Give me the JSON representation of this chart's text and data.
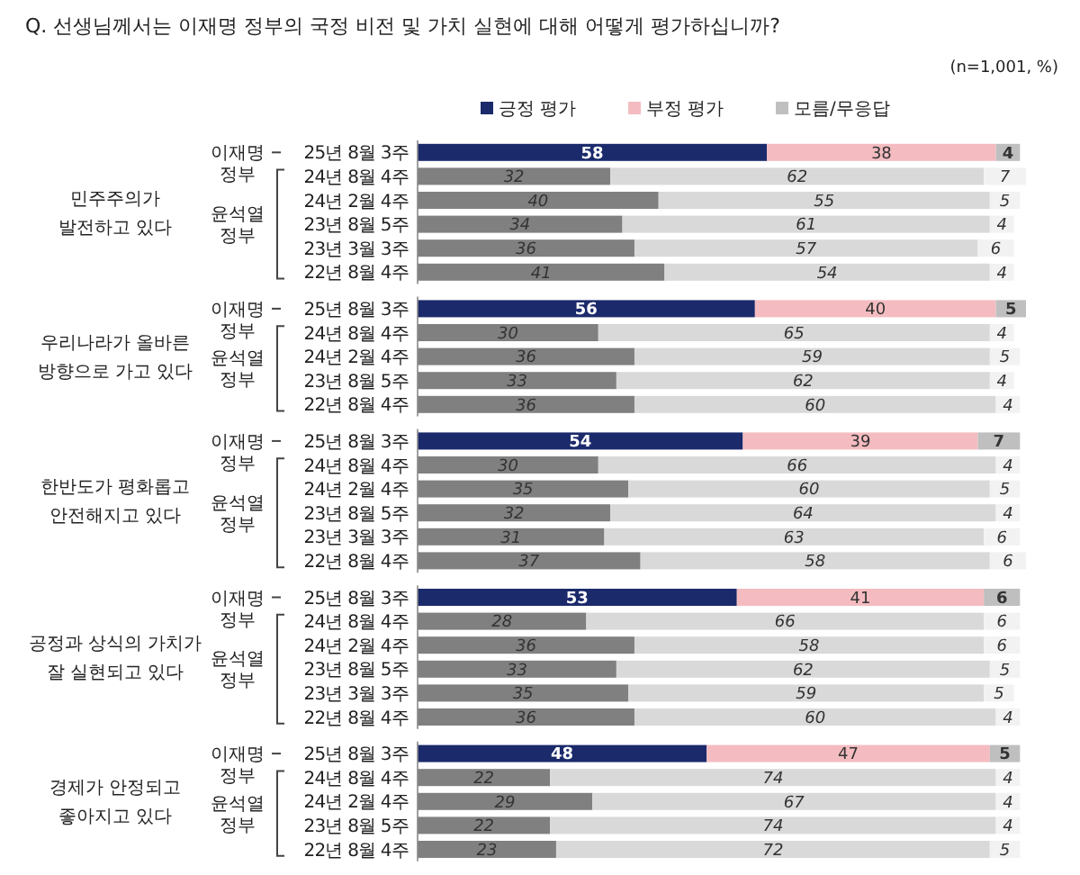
{
  "chart_data": [
    {
      "type": "bar",
      "orientation": "horizontal",
      "stacked": true,
      "data_labels": true,
      "legend": "top",
      "title": "Q. 선생님께서는 이재명 정부의 국정 비전 및 가치 실현에 대해 어떻게 평가하십니까?",
      "subtitle": "(n=1,001, %)",
      "ylabel": "민주주의가 발전하고 있다",
      "annotations": [
        "이재명 정부",
        "윤석열 정부"
      ],
      "categories": [
        "25년 8월 3주",
        "24년 8월 4주",
        "24년 2월 4주",
        "23년 8월 5주",
        "23년 3월 3주",
        "22년 8월 4주"
      ],
      "series": [
        {
          "name": "긍정 평가",
          "color": "#1b2a6b",
          "colors": [
            "#1b2a6b",
            "#808080",
            "#808080",
            "#808080",
            "#808080",
            "#808080"
          ],
          "values": [
            58,
            32,
            40,
            34,
            36,
            41
          ]
        },
        {
          "name": "부정 평가",
          "color": "#f4bcc0",
          "colors": [
            "#f4bcc0",
            "#d9d9d9",
            "#d9d9d9",
            "#d9d9d9",
            "#d9d9d9",
            "#d9d9d9"
          ],
          "values": [
            38,
            62,
            55,
            61,
            57,
            54
          ]
        },
        {
          "name": "모름/무응답",
          "color": "#bfbfbf",
          "colors": [
            "#bfbfbf",
            "#f2f2f2",
            "#f2f2f2",
            "#f2f2f2",
            "#f2f2f2",
            "#f2f2f2"
          ],
          "values": [
            4,
            7,
            5,
            4,
            6,
            4
          ]
        }
      ]
    },
    {
      "type": "bar",
      "orientation": "horizontal",
      "stacked": true,
      "data_labels": true,
      "ylabel": "우리나라가 올바른 방향으로 가고 있다",
      "annotations": [
        "이재명 정부",
        "윤석열 정부"
      ],
      "categories": [
        "25년 8월 3주",
        "24년 8월 4주",
        "24년 2월 4주",
        "23년 8월 5주",
        "22년 8월 4주"
      ],
      "series": [
        {
          "colors": [
            "#1b2a6b",
            "#808080",
            "#808080",
            "#808080",
            "#808080"
          ],
          "values": [
            56,
            30,
            36,
            33,
            36
          ]
        },
        {
          "colors": [
            "#f4bcc0",
            "#d9d9d9",
            "#d9d9d9",
            "#d9d9d9",
            "#d9d9d9"
          ],
          "values": [
            40,
            65,
            59,
            62,
            60
          ]
        },
        {
          "colors": [
            "#bfbfbf",
            "#f2f2f2",
            "#f2f2f2",
            "#f2f2f2",
            "#f2f2f2"
          ],
          "values": [
            5,
            4,
            5,
            4,
            4
          ]
        }
      ]
    },
    {
      "type": "bar",
      "orientation": "horizontal",
      "stacked": true,
      "data_labels": true,
      "ylabel": "한반도가 평화롭고 안전해지고 있다",
      "annotations": [
        "이재명 정부",
        "윤석열 정부"
      ],
      "categories": [
        "25년 8월 3주",
        "24년 8월 4주",
        "24년 2월 4주",
        "23년 8월 5주",
        "23년 3월 3주",
        "22년 8월 4주"
      ],
      "series": [
        {
          "colors": [
            "#1b2a6b",
            "#808080",
            "#808080",
            "#808080",
            "#808080",
            "#808080"
          ],
          "values": [
            54,
            30,
            35,
            32,
            31,
            37
          ]
        },
        {
          "colors": [
            "#f4bcc0",
            "#d9d9d9",
            "#d9d9d9",
            "#d9d9d9",
            "#d9d9d9",
            "#d9d9d9"
          ],
          "values": [
            39,
            66,
            60,
            64,
            63,
            58
          ]
        },
        {
          "colors": [
            "#bfbfbf",
            "#f2f2f2",
            "#f2f2f2",
            "#f2f2f2",
            "#f2f2f2",
            "#f2f2f2"
          ],
          "values": [
            7,
            4,
            5,
            4,
            6,
            6
          ]
        }
      ]
    },
    {
      "type": "bar",
      "orientation": "horizontal",
      "stacked": true,
      "data_labels": true,
      "ylabel": "공정과 상식의 가치가 잘 실현되고 있다",
      "annotations": [
        "이재명 정부",
        "윤석열 정부"
      ],
      "categories": [
        "25년 8월 3주",
        "24년 8월 4주",
        "24년 2월 4주",
        "23년 8월 5주",
        "23년 3월 3주",
        "22년 8월 4주"
      ],
      "series": [
        {
          "colors": [
            "#1b2a6b",
            "#808080",
            "#808080",
            "#808080",
            "#808080",
            "#808080"
          ],
          "values": [
            53,
            28,
            36,
            33,
            35,
            36
          ]
        },
        {
          "colors": [
            "#f4bcc0",
            "#d9d9d9",
            "#d9d9d9",
            "#d9d9d9",
            "#d9d9d9",
            "#d9d9d9"
          ],
          "values": [
            41,
            66,
            58,
            62,
            59,
            60
          ]
        },
        {
          "colors": [
            "#bfbfbf",
            "#f2f2f2",
            "#f2f2f2",
            "#f2f2f2",
            "#f2f2f2",
            "#f2f2f2"
          ],
          "values": [
            6,
            6,
            6,
            5,
            5,
            4
          ]
        }
      ]
    },
    {
      "type": "bar",
      "orientation": "horizontal",
      "stacked": true,
      "data_labels": true,
      "ylabel": "경제가 안정되고 좋아지고 있다",
      "annotations": [
        "이재명 정부",
        "윤석열 정부"
      ],
      "categories": [
        "25년 8월 3주",
        "24년 8월 4주",
        "24년 2월 4주",
        "23년 8월 5주",
        "22년 8월 4주"
      ],
      "series": [
        {
          "colors": [
            "#1b2a6b",
            "#808080",
            "#808080",
            "#808080",
            "#808080"
          ],
          "values": [
            48,
            22,
            29,
            22,
            23
          ]
        },
        {
          "colors": [
            "#f4bcc0",
            "#d9d9d9",
            "#d9d9d9",
            "#d9d9d9",
            "#d9d9d9"
          ],
          "values": [
            47,
            74,
            67,
            74,
            72
          ]
        },
        {
          "colors": [
            "#bfbfbf",
            "#f2f2f2",
            "#f2f2f2",
            "#f2f2f2",
            "#f2f2f2"
          ],
          "values": [
            5,
            4,
            4,
            4,
            5
          ]
        }
      ]
    }
  ]
}
